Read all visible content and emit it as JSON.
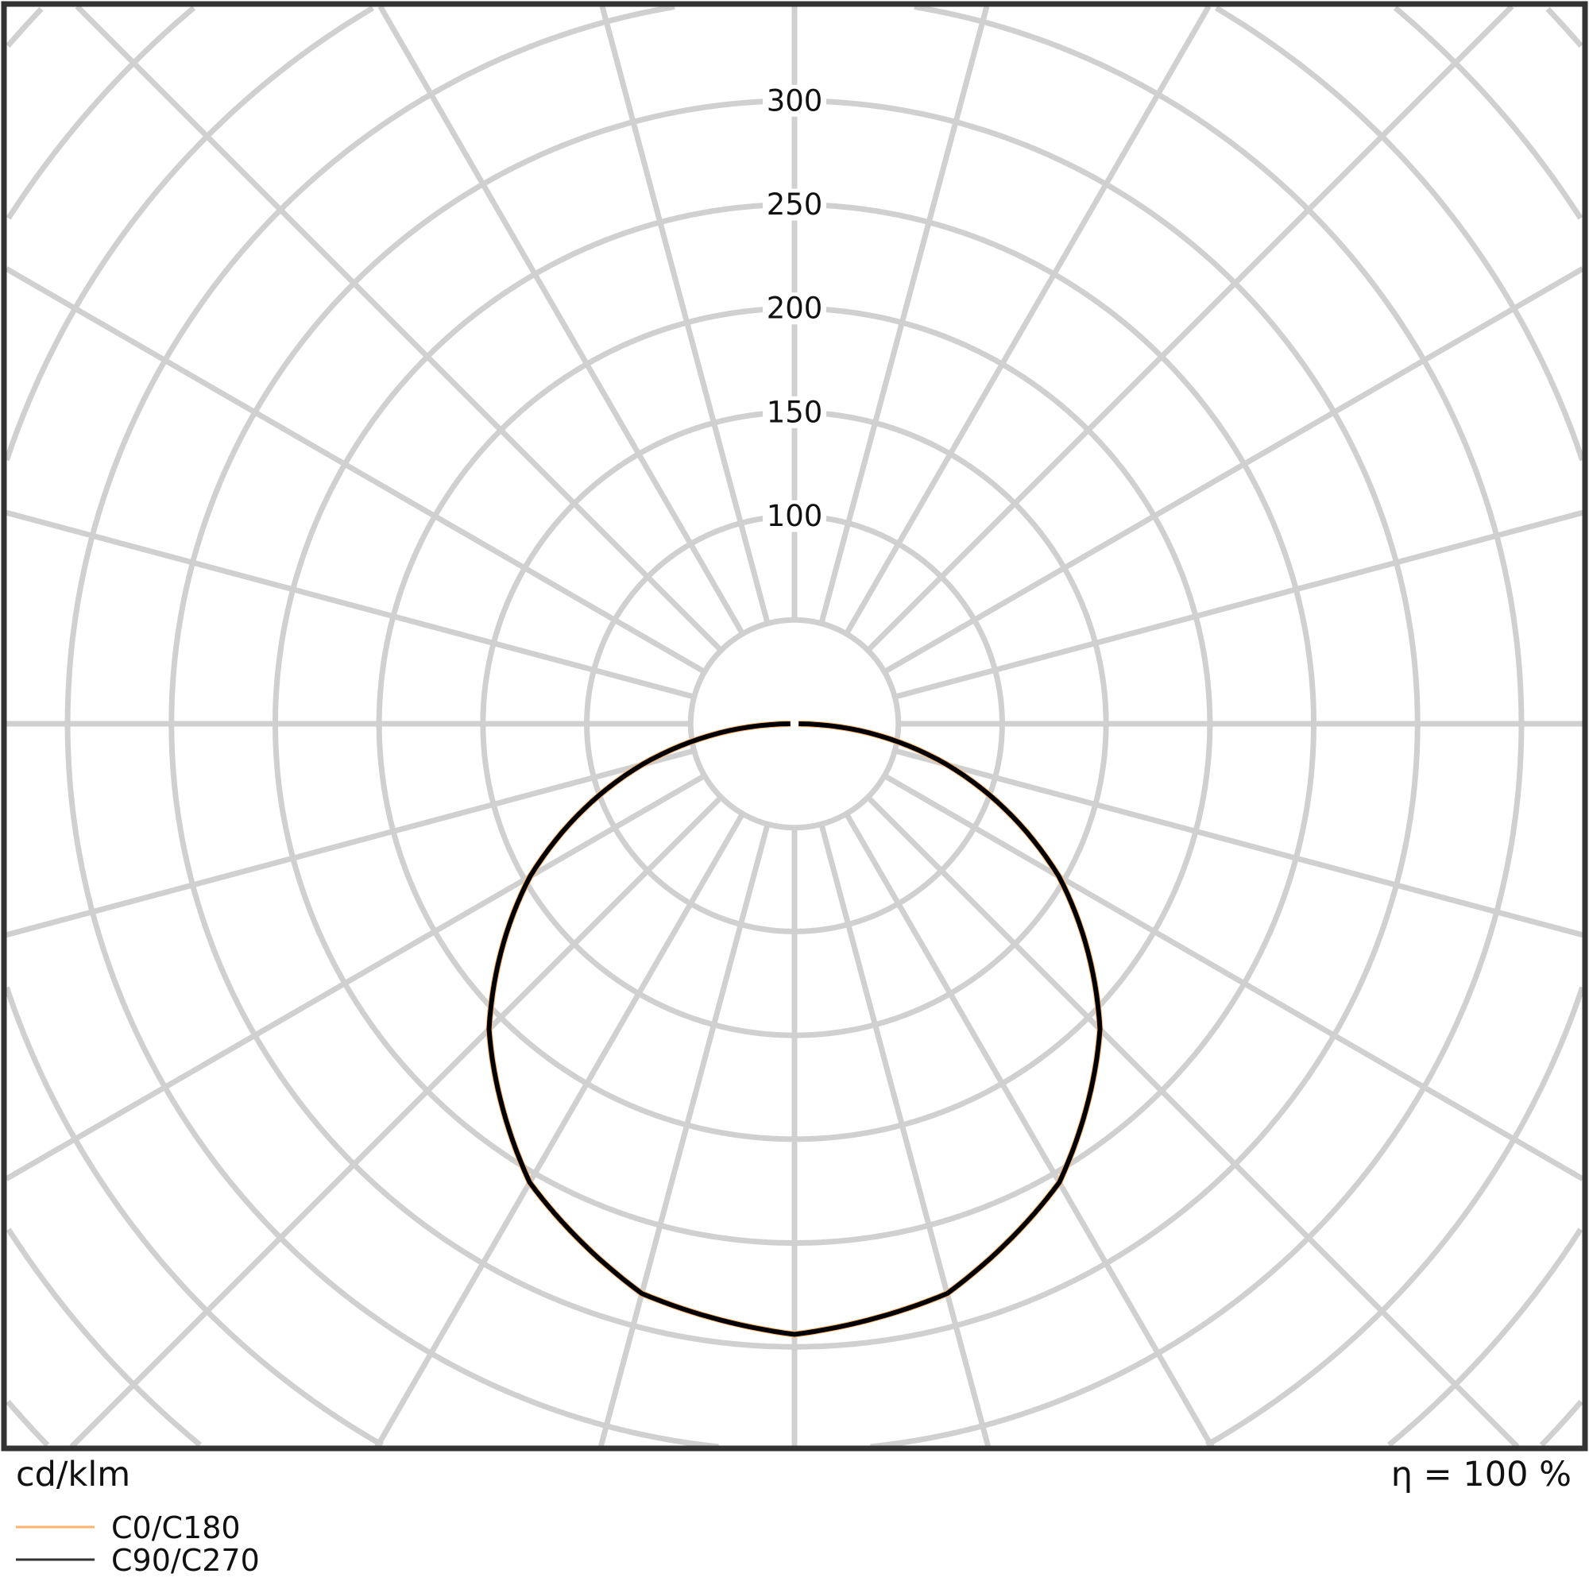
{
  "chart_data": {
    "type": "polar",
    "unit_label": "cd/klm",
    "efficiency_label": "η = 100 %",
    "radial_ticks": [
      "100",
      "150",
      "200",
      "250",
      "300"
    ],
    "radial_tick_values": [
      100,
      150,
      200,
      250,
      300
    ],
    "radial_grid_step": 50,
    "angular_grid_step_deg": 15,
    "grid": true,
    "legend_placement": "bottom-left",
    "angles_deg": [
      0,
      15,
      30,
      45,
      60,
      75,
      90
    ],
    "series": [
      {
        "name": "C0/C180",
        "color": "#ffb46e",
        "values": [
          294,
          284,
          255,
          208,
          147,
          76,
          2
        ]
      },
      {
        "name": "C90/C270",
        "color": "#000000",
        "values": [
          294,
          284,
          255,
          208,
          147,
          76,
          2
        ]
      }
    ],
    "colors": {
      "grid": "#d0d0d0",
      "frame": "#333333"
    }
  }
}
